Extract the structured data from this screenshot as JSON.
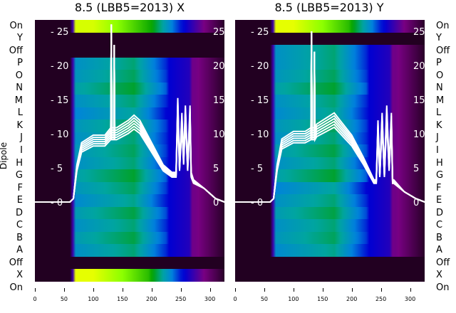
{
  "chart_data": [
    {
      "type": "heatmap",
      "title": "8.5 (LBB5=2013) X",
      "ylabel": "Dipole",
      "xlim": [
        0,
        325
      ],
      "xticks": [
        0,
        50,
        100,
        150,
        200,
        250,
        300
      ],
      "inner_yticks": [
        0,
        5,
        10,
        15,
        20,
        25
      ],
      "rows": [
        {
          "label": "On",
          "level": 0.95
        },
        {
          "label": "Y",
          "level": 0.03
        },
        {
          "label": "Off",
          "level": 0.03
        },
        {
          "label": "P",
          "level": 0.6
        },
        {
          "label": "O",
          "level": 0.62
        },
        {
          "label": "N",
          "level": 0.66
        },
        {
          "label": "M",
          "level": 0.6
        },
        {
          "label": "L",
          "level": 0.56
        },
        {
          "label": "K",
          "level": 0.62
        },
        {
          "label": "J",
          "level": 0.6
        },
        {
          "label": "I",
          "level": 0.62
        },
        {
          "label": "H",
          "level": 0.6
        },
        {
          "label": "G",
          "level": 0.66
        },
        {
          "label": "F",
          "level": 0.62
        },
        {
          "label": "E",
          "level": 0.58
        },
        {
          "label": "D",
          "level": 0.64
        },
        {
          "label": "C",
          "level": 0.6
        },
        {
          "label": "B",
          "level": 0.64
        },
        {
          "label": "A",
          "level": 0.6
        },
        {
          "label": "Off",
          "level": 0.03
        },
        {
          "label": "X",
          "level": 0.97
        },
        {
          "label": "On",
          "level": 0.0
        }
      ],
      "lines": {
        "x": [
          0,
          60,
          66,
          72,
          80,
          100,
          120,
          130,
          131,
          132,
          135,
          136,
          137,
          140,
          160,
          170,
          180,
          200,
          220,
          235,
          242,
          245,
          248,
          252,
          255,
          258,
          262,
          266,
          268,
          272,
          290,
          310,
          325
        ],
        "y": [
          0,
          0,
          0.5,
          5,
          8,
          9,
          9,
          10,
          26,
          10,
          10,
          23,
          10,
          10,
          11,
          11.7,
          11,
          8,
          5,
          4,
          4,
          14,
          5,
          12,
          6,
          13,
          5,
          13,
          4,
          3,
          2,
          0.5,
          0
        ]
      },
      "line_count": 6
    },
    {
      "type": "heatmap",
      "title": "8.5 (LBB5=2013) Y",
      "xlim": [
        0,
        325
      ],
      "xticks": [
        0,
        50,
        100,
        150,
        200,
        250,
        300
      ],
      "inner_yticks": [
        0,
        5,
        10,
        15,
        20,
        25
      ],
      "rows": [
        {
          "label": "On",
          "level": 0.97
        },
        {
          "label": "Y",
          "level": 0.03
        },
        {
          "label": "Off",
          "level": 0.6
        },
        {
          "label": "P",
          "level": 0.6
        },
        {
          "label": "O",
          "level": 0.62
        },
        {
          "label": "N",
          "level": 0.66
        },
        {
          "label": "M",
          "level": 0.6
        },
        {
          "label": "L",
          "level": 0.58
        },
        {
          "label": "K",
          "level": 0.62
        },
        {
          "label": "J",
          "level": 0.6
        },
        {
          "label": "I",
          "level": 0.64
        },
        {
          "label": "H",
          "level": 0.6
        },
        {
          "label": "G",
          "level": 0.66
        },
        {
          "label": "F",
          "level": 0.56
        },
        {
          "label": "E",
          "level": 0.6
        },
        {
          "label": "D",
          "level": 0.64
        },
        {
          "label": "C",
          "level": 0.6
        },
        {
          "label": "B",
          "level": 0.62
        },
        {
          "label": "A",
          "level": 0.58
        },
        {
          "label": "Off",
          "level": 0.03
        },
        {
          "label": "X",
          "level": 0.03
        },
        {
          "label": "On",
          "level": 0.97
        }
      ],
      "lines": {
        "x": [
          0,
          60,
          66,
          72,
          80,
          100,
          120,
          130,
          131,
          132,
          135,
          136,
          137,
          140,
          160,
          170,
          180,
          200,
          220,
          238,
          242,
          245,
          248,
          252,
          256,
          260,
          264,
          268,
          270,
          272,
          290,
          310,
          325
        ],
        "y": [
          0,
          0,
          0.5,
          5,
          8.5,
          9.5,
          9.5,
          10,
          25,
          10,
          10,
          22,
          10,
          10.5,
          11.5,
          12,
          11,
          9,
          6,
          3,
          3,
          11,
          4,
          12,
          4,
          13,
          5,
          12,
          3,
          3,
          1.5,
          0.5,
          0
        ]
      },
      "line_count": 6
    }
  ]
}
